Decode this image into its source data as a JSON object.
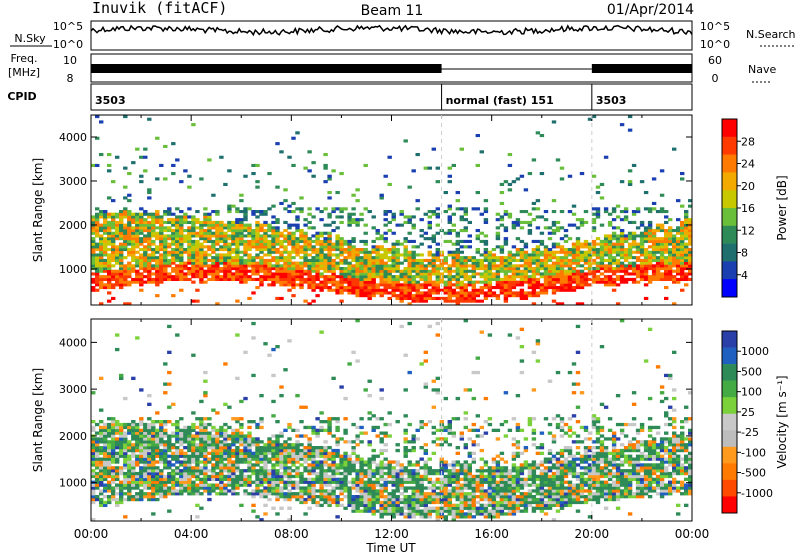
{
  "header": {
    "station": "Inuvik (fitACF)",
    "beam": "Beam 11",
    "date": "01/Apr/2014"
  },
  "summary_panels": {
    "nsky_label": "N.Sky",
    "nsky_ticks": [
      "10^5",
      "10^0"
    ],
    "nsearch_label": "N.Search",
    "freq_label": "Freq.",
    "freq_unit": "[MHz]",
    "freq_ticks": [
      "10",
      "8"
    ],
    "nave_label": "Nave",
    "nave_ticks": [
      "60",
      "0"
    ],
    "cpid_label": "CPID",
    "cpid_segments": [
      {
        "label": "3503",
        "start_hour": 0,
        "end_hour": 14
      },
      {
        "label": "normal (fast) 151",
        "start_hour": 14,
        "end_hour": 20
      },
      {
        "label": "3503",
        "start_hour": 20,
        "end_hour": 24
      }
    ]
  },
  "chart_data": [
    {
      "type": "heatmap",
      "ylabel": "Slant Range [km]",
      "ylim": [
        180,
        4500
      ],
      "xlim": [
        0,
        24
      ],
      "y_ticks": [
        "1000",
        "2000",
        "3000",
        "4000"
      ],
      "colorbar_label": "Power [dB]",
      "colorbar_ticks": [
        "28",
        "24",
        "20",
        "16",
        "12",
        "8",
        "4"
      ],
      "colorbar_colors": [
        "#ff0000",
        "#ff3a00",
        "#ff7a00",
        "#f2a900",
        "#c8c800",
        "#6abf3a",
        "#2e8b57",
        "#1f6f6f",
        "#1a3fb0",
        "#0000ff"
      ]
    },
    {
      "type": "heatmap",
      "ylabel": "Slant Range [km]",
      "ylim": [
        180,
        4500
      ],
      "xlim": [
        0,
        24
      ],
      "y_ticks": [
        "1000",
        "2000",
        "3000",
        "4000"
      ],
      "xlabel": "Time UT",
      "x_ticks": [
        "00:00",
        "04:00",
        "08:00",
        "12:00",
        "16:00",
        "20:00",
        "00:00"
      ],
      "colorbar_label": "Velocity [m s⁻¹]",
      "colorbar_ticks": [
        "1000",
        "500",
        "100",
        "25",
        "-25",
        "-100",
        "-500",
        "-1000"
      ],
      "colorbar_colors": [
        "#2a3fa8",
        "#1f5fc0",
        "#2e8b57",
        "#44aa44",
        "#7ad13a",
        "#c8c8c8",
        "#bdbdbd",
        "#ff9a1f",
        "#ff7a00",
        "#ff4a00",
        "#ff0000"
      ]
    }
  ]
}
